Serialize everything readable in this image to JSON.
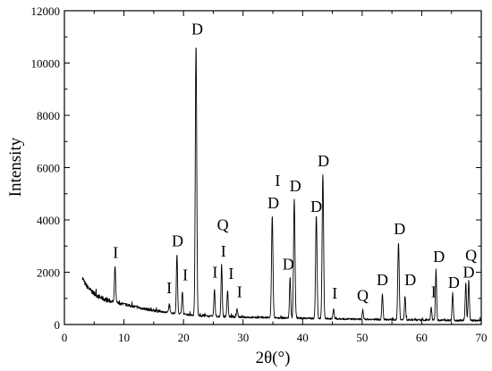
{
  "chart_data": {
    "type": "line",
    "title": "",
    "xlabel": "2θ(°)",
    "ylabel": "Intensity",
    "xlim": [
      0,
      70
    ],
    "ylim": [
      0,
      12000
    ],
    "xticks": [
      0,
      10,
      20,
      30,
      40,
      50,
      60,
      70
    ],
    "yticks": [
      0,
      2000,
      4000,
      6000,
      8000,
      10000,
      12000
    ],
    "grid": false,
    "legend": "none",
    "line_color": "#000000",
    "baseline": [
      [
        3.0,
        1800
      ],
      [
        3.5,
        1550
      ],
      [
        4.0,
        1400
      ],
      [
        4.5,
        1280
      ],
      [
        5.0,
        1180
      ],
      [
        5.5,
        1100
      ],
      [
        6.0,
        1040
      ],
      [
        6.5,
        990
      ],
      [
        7.0,
        940
      ],
      [
        8.0,
        880
      ],
      [
        9.0,
        820
      ],
      [
        10.0,
        770
      ],
      [
        11.0,
        720
      ],
      [
        12.0,
        670
      ],
      [
        13.0,
        620
      ],
      [
        14.0,
        580
      ],
      [
        15.0,
        540
      ],
      [
        16.0,
        505
      ],
      [
        17.0,
        470
      ],
      [
        18.0,
        440
      ],
      [
        20.0,
        390
      ],
      [
        22.0,
        350
      ],
      [
        24.0,
        320
      ],
      [
        26.0,
        300
      ],
      [
        28.0,
        290
      ],
      [
        30.0,
        280
      ],
      [
        32.0,
        270
      ],
      [
        35.0,
        260
      ],
      [
        40.0,
        240
      ],
      [
        45.0,
        220
      ],
      [
        50.0,
        200
      ],
      [
        55.0,
        185
      ],
      [
        60.0,
        170
      ],
      [
        65.0,
        160
      ],
      [
        70.0,
        150
      ]
    ],
    "peaks": [
      {
        "x": 8.5,
        "y": 2250,
        "label": "I"
      },
      {
        "x": 17.6,
        "y": 760,
        "label": "I"
      },
      {
        "x": 18.9,
        "y": 2700,
        "label": "D"
      },
      {
        "x": 19.8,
        "y": 1250,
        "label": "I"
      },
      {
        "x": 22.1,
        "y": 10700,
        "label": "D"
      },
      {
        "x": 25.2,
        "y": 1350,
        "label": "I"
      },
      {
        "x": 26.4,
        "y": 2300,
        "label": "I"
      },
      {
        "x": 27.4,
        "y": 1300,
        "label": "I"
      },
      {
        "x": 29.0,
        "y": 600,
        "label": "I"
      },
      {
        "x": 34.9,
        "y": 4150,
        "label": "D"
      },
      {
        "x": 37.9,
        "y": 1800,
        "label": "D"
      },
      {
        "x": 38.6,
        "y": 4800,
        "label": "D"
      },
      {
        "x": 42.3,
        "y": 4200,
        "label": "D"
      },
      {
        "x": 43.4,
        "y": 5750,
        "label": "D"
      },
      {
        "x": 45.2,
        "y": 600,
        "label": "I"
      },
      {
        "x": 50.1,
        "y": 500,
        "label": "Q"
      },
      {
        "x": 53.4,
        "y": 1150,
        "label": "D"
      },
      {
        "x": 56.1,
        "y": 3150,
        "label": "D"
      },
      {
        "x": 57.2,
        "y": 1100,
        "label": "D"
      },
      {
        "x": 61.6,
        "y": 650,
        "label": "I"
      },
      {
        "x": 62.4,
        "y": 2100,
        "label": "D"
      },
      {
        "x": 65.2,
        "y": 1200,
        "label": "D"
      },
      {
        "x": 67.4,
        "y": 1600,
        "label": "D"
      },
      {
        "x": 67.9,
        "y": 1700,
        "label": "Q"
      }
    ],
    "annotations": [
      {
        "text": "I",
        "x": 8.6,
        "y": 2550
      },
      {
        "text": "I",
        "x": 17.6,
        "y": 1200
      },
      {
        "text": "D",
        "x": 19.0,
        "y": 3000
      },
      {
        "text": "I",
        "x": 20.3,
        "y": 1700
      },
      {
        "text": "D",
        "x": 22.3,
        "y": 11100
      },
      {
        "text": "I",
        "x": 25.3,
        "y": 1800
      },
      {
        "text": "Q",
        "x": 26.6,
        "y": 3600
      },
      {
        "text": "I",
        "x": 26.7,
        "y": 2600
      },
      {
        "text": "I",
        "x": 28.0,
        "y": 1750
      },
      {
        "text": "I",
        "x": 29.4,
        "y": 1050
      },
      {
        "text": "I",
        "x": 35.8,
        "y": 5300
      },
      {
        "text": "D",
        "x": 35.1,
        "y": 4450
      },
      {
        "text": "D",
        "x": 37.6,
        "y": 2100
      },
      {
        "text": "D",
        "x": 38.8,
        "y": 5100
      },
      {
        "text": "D",
        "x": 42.3,
        "y": 4300
      },
      {
        "text": "D",
        "x": 43.5,
        "y": 6050
      },
      {
        "text": "I",
        "x": 45.4,
        "y": 1000
      },
      {
        "text": "Q",
        "x": 50.1,
        "y": 900
      },
      {
        "text": "D",
        "x": 53.4,
        "y": 1500
      },
      {
        "text": "D",
        "x": 56.3,
        "y": 3450
      },
      {
        "text": "D",
        "x": 58.1,
        "y": 1500
      },
      {
        "text": "I",
        "x": 62.0,
        "y": 1050
      },
      {
        "text": "D",
        "x": 62.9,
        "y": 2400
      },
      {
        "text": "D",
        "x": 65.4,
        "y": 1400
      },
      {
        "text": "Q",
        "x": 68.3,
        "y": 2450
      },
      {
        "text": "D",
        "x": 67.9,
        "y": 1800
      }
    ]
  }
}
